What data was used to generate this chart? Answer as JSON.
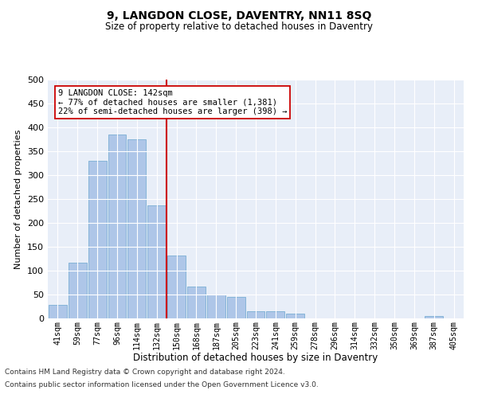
{
  "title1": "9, LANGDON CLOSE, DAVENTRY, NN11 8SQ",
  "title2": "Size of property relative to detached houses in Daventry",
  "xlabel": "Distribution of detached houses by size in Daventry",
  "ylabel": "Number of detached properties",
  "categories": [
    "41sqm",
    "59sqm",
    "77sqm",
    "96sqm",
    "114sqm",
    "132sqm",
    "150sqm",
    "168sqm",
    "187sqm",
    "205sqm",
    "223sqm",
    "241sqm",
    "259sqm",
    "278sqm",
    "296sqm",
    "314sqm",
    "332sqm",
    "350sqm",
    "369sqm",
    "387sqm",
    "405sqm"
  ],
  "values": [
    29,
    116,
    330,
    385,
    375,
    237,
    132,
    67,
    50,
    45,
    15,
    15,
    10,
    0,
    0,
    0,
    0,
    0,
    0,
    5,
    0
  ],
  "bar_color": "#aec6e8",
  "bar_edge_color": "#7aafd4",
  "vline_color": "#cc0000",
  "annotation_line1": "9 LANGDON CLOSE: 142sqm",
  "annotation_line2": "← 77% of detached houses are smaller (1,381)",
  "annotation_line3": "22% of semi-detached houses are larger (398) →",
  "annotation_box_facecolor": "#ffffff",
  "annotation_box_edgecolor": "#cc0000",
  "ylim": [
    0,
    500
  ],
  "yticks": [
    0,
    50,
    100,
    150,
    200,
    250,
    300,
    350,
    400,
    450,
    500
  ],
  "bg_color": "#e8eef8",
  "footnote1": "Contains HM Land Registry data © Crown copyright and database right 2024.",
  "footnote2": "Contains public sector information licensed under the Open Government Licence v3.0."
}
